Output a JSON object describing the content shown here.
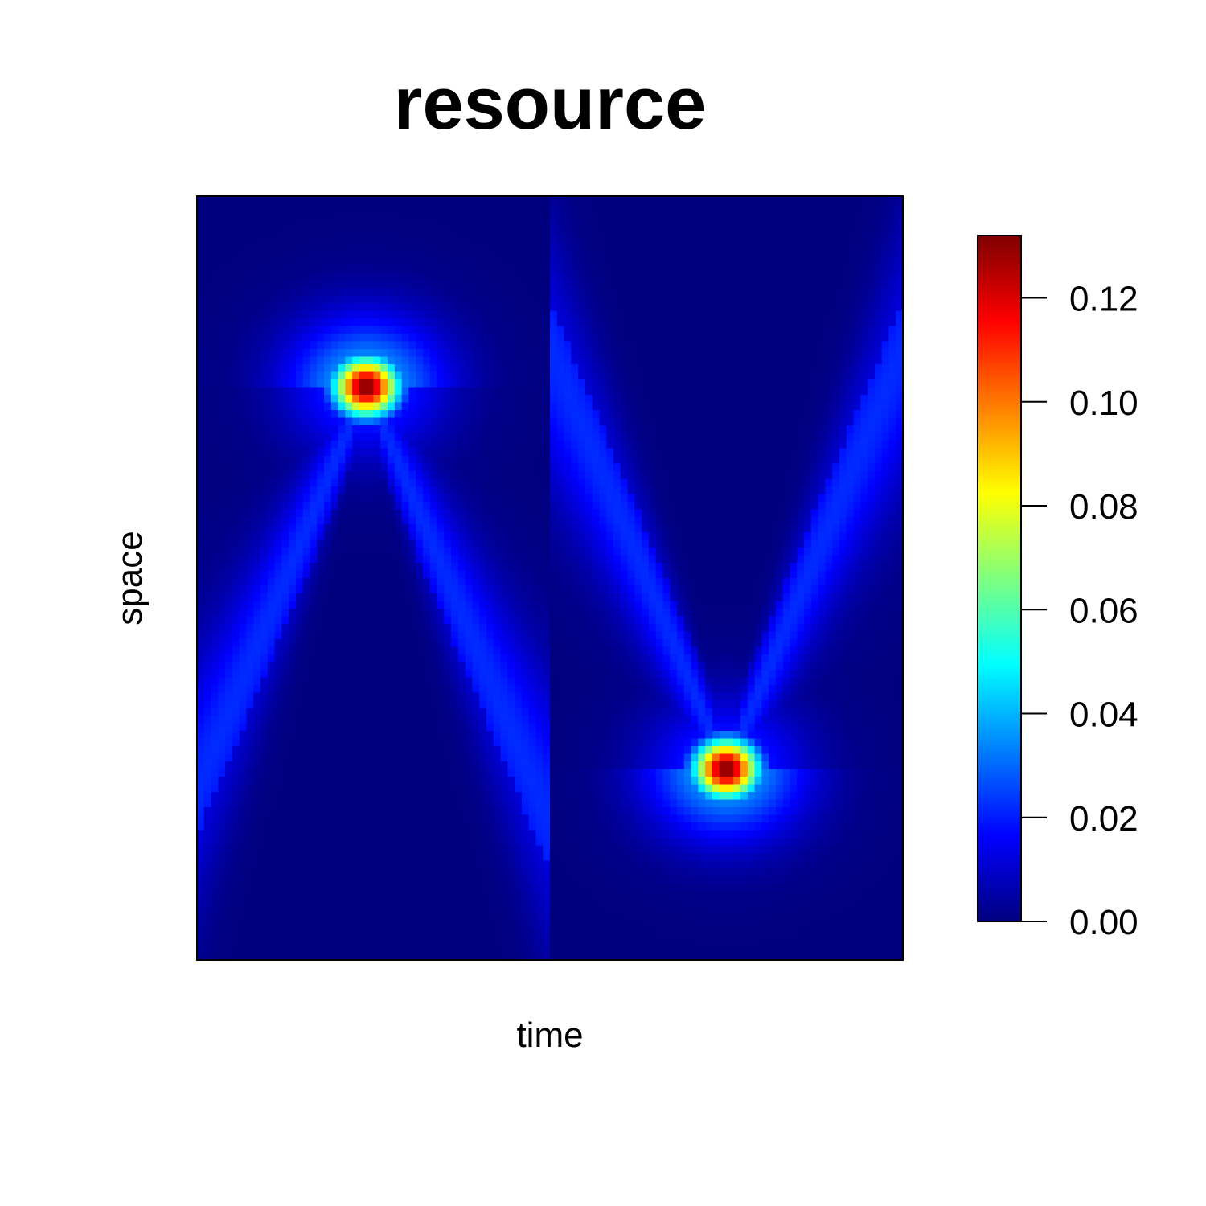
{
  "chart_data": {
    "type": "heatmap",
    "title": "resource",
    "xlabel": "time",
    "ylabel": "space",
    "x_ticks_shown": false,
    "y_ticks_shown": false,
    "colorscale": "matlab-jet",
    "colorscale_stops": [
      "#00007F",
      "#0000FF",
      "#007FFF",
      "#00FFFF",
      "#7FFF7F",
      "#FFFF00",
      "#FF7F00",
      "#FF0000",
      "#7F0000"
    ],
    "zlim": [
      0,
      0.132
    ],
    "colorbar_ticks": [
      "0.00",
      "0.02",
      "0.04",
      "0.06",
      "0.08",
      "0.10",
      "0.12"
    ],
    "colorbar_tick_values": [
      0,
      0.02,
      0.04,
      0.06,
      0.08,
      0.1,
      0.12
    ],
    "x_range": [
      0,
      1
    ],
    "y_range": [
      0,
      1
    ],
    "peaks": [
      {
        "time": 0.24,
        "space": 0.75,
        "value": 0.132
      },
      {
        "time": 0.75,
        "space": 0.25,
        "value": 0.132
      }
    ],
    "background_value": 0.0,
    "grid": false,
    "legend": "colorbar-right"
  }
}
